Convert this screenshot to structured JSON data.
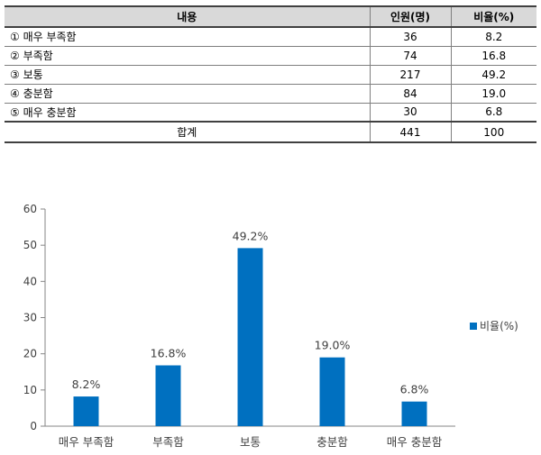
{
  "table": {
    "headers": [
      "내용",
      "인원(명)",
      "비율(%)"
    ],
    "rows": [
      {
        "label": "① 매우 부족함",
        "count": "36",
        "ratio": "8.2"
      },
      {
        "label": "② 부족함",
        "count": "74",
        "ratio": "16.8"
      },
      {
        "label": "③ 보통",
        "count": "217",
        "ratio": "49.2"
      },
      {
        "label": "④ 충분함",
        "count": "84",
        "ratio": "19.0"
      },
      {
        "label": "⑤ 매우 충분함",
        "count": "30",
        "ratio": "6.8"
      }
    ],
    "total": {
      "label": "합계",
      "count": "441",
      "ratio": "100"
    }
  },
  "chart_data": {
    "type": "bar",
    "categories": [
      "매우 부족함",
      "부족함",
      "보통",
      "충분함",
      "매우 충분함"
    ],
    "series": [
      {
        "name": "비율(%)",
        "values": [
          8.2,
          16.8,
          49.2,
          19.0,
          6.8
        ],
        "color": "#0070c0"
      }
    ],
    "data_labels": [
      "8.2%",
      "16.8%",
      "49.2%",
      "19.0%",
      "6.8%"
    ],
    "yticks": [
      0,
      10,
      20,
      30,
      40,
      50,
      60
    ],
    "ylim": [
      0,
      60
    ],
    "grid": false,
    "legend_position": "right"
  }
}
